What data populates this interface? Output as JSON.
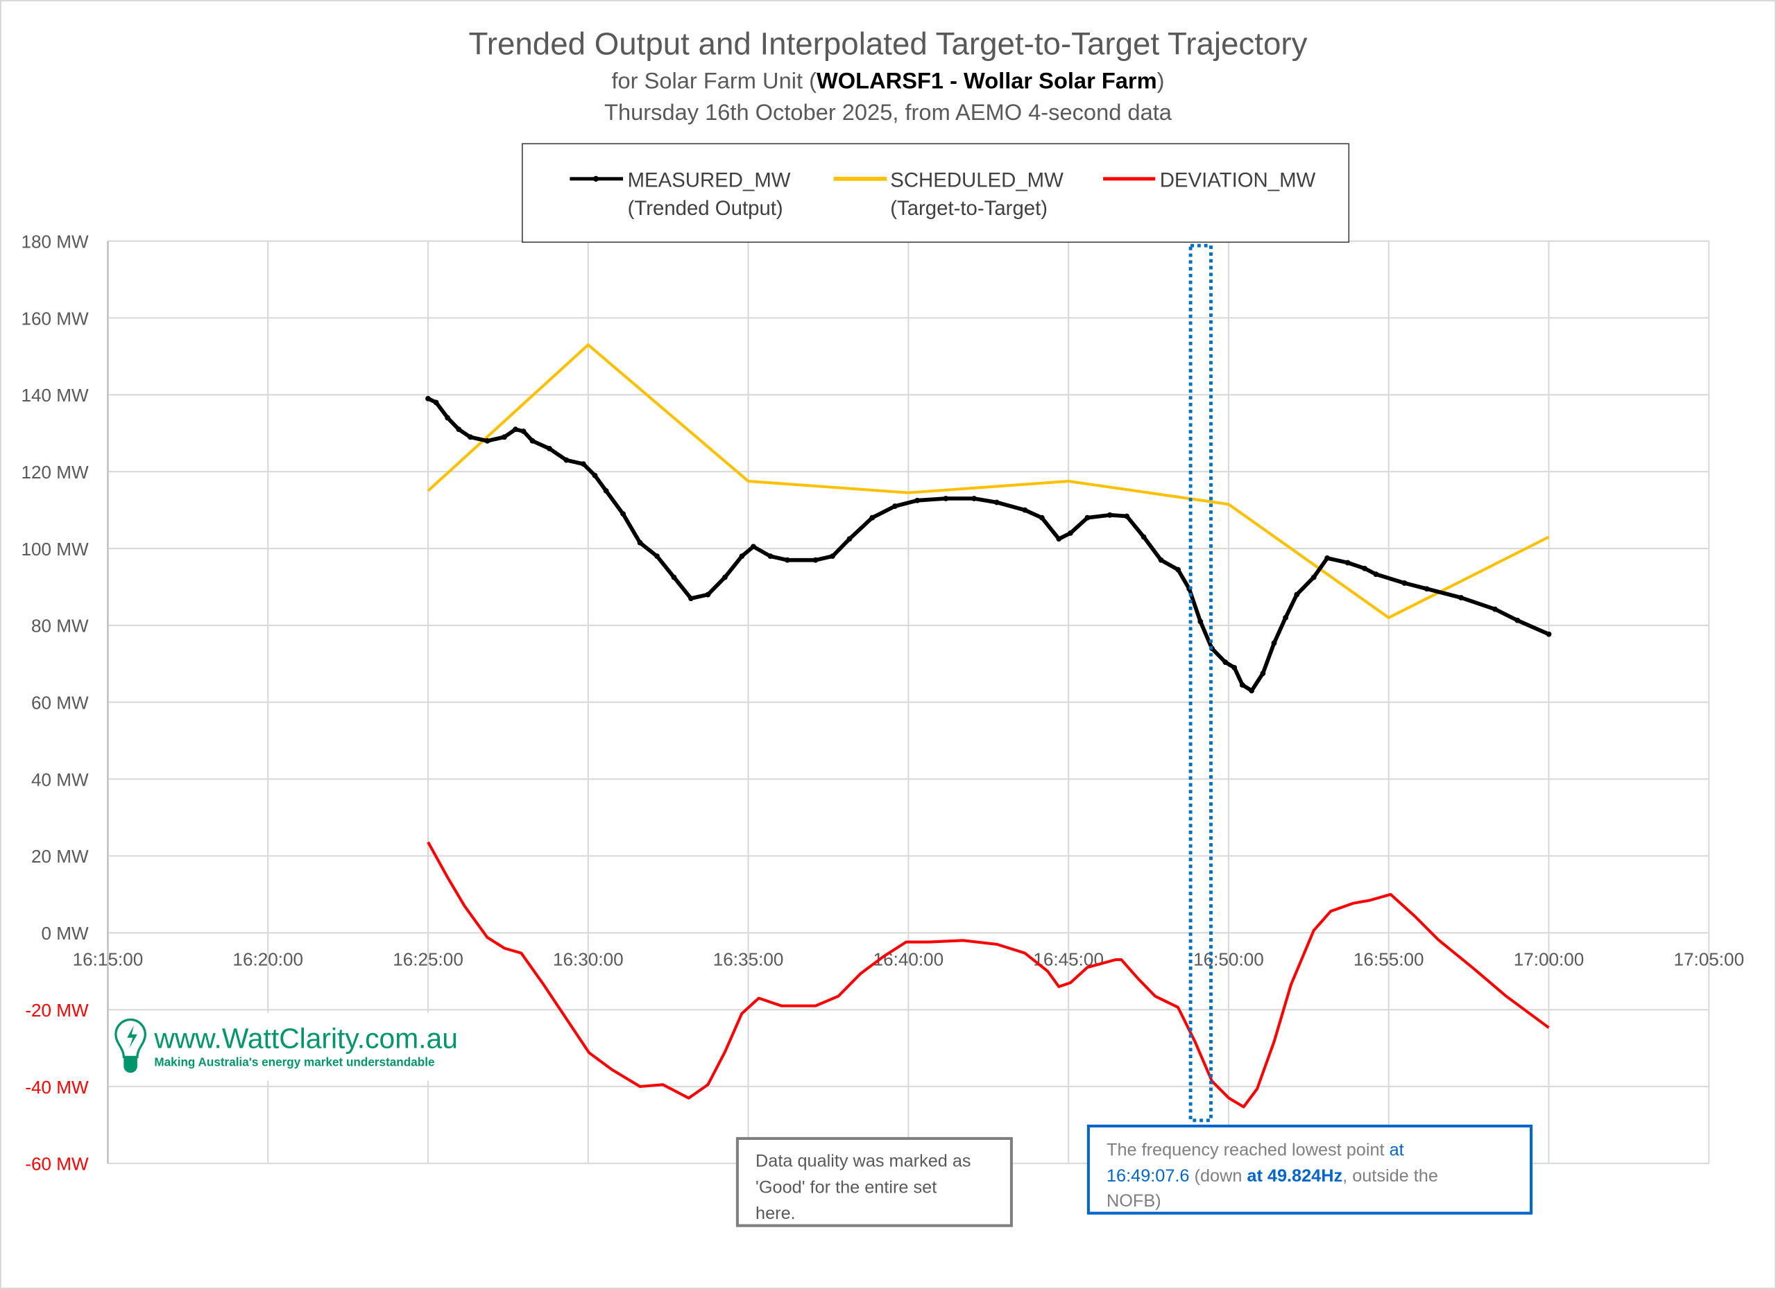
{
  "chart_data": {
    "type": "line",
    "title": "Trended Output and Interpolated Target-to-Target Trajectory",
    "subtitle_prefix": "for Solar Farm Unit (",
    "subtitle_bold": "WOLARSF1 - Wollar Solar Farm",
    "subtitle_suffix": ")",
    "subtitle2": "Thursday 16th October 2025, from AEMO 4-second data",
    "x_unit": "minutes after 16:00",
    "xlim": [
      15,
      65
    ],
    "ylim": [
      -60,
      180
    ],
    "grid": true,
    "legend_position": "top",
    "x_ticks": [
      {
        "value": 15,
        "label": "16:15:00"
      },
      {
        "value": 20,
        "label": "16:20:00"
      },
      {
        "value": 25,
        "label": "16:25:00"
      },
      {
        "value": 30,
        "label": "16:30:00"
      },
      {
        "value": 35,
        "label": "16:35:00"
      },
      {
        "value": 40,
        "label": "16:40:00"
      },
      {
        "value": 45,
        "label": "16:45:00"
      },
      {
        "value": 50,
        "label": "16:50:00"
      },
      {
        "value": 55,
        "label": "16:55:00"
      },
      {
        "value": 60,
        "label": "17:00:00"
      },
      {
        "value": 65,
        "label": "17:05:00"
      }
    ],
    "y_ticks": [
      {
        "value": 180,
        "label": "180 MW"
      },
      {
        "value": 160,
        "label": "160 MW"
      },
      {
        "value": 140,
        "label": "140 MW"
      },
      {
        "value": 120,
        "label": "120 MW"
      },
      {
        "value": 100,
        "label": "100 MW"
      },
      {
        "value": 80,
        "label": "80 MW"
      },
      {
        "value": 60,
        "label": "60 MW"
      },
      {
        "value": 40,
        "label": "40 MW"
      },
      {
        "value": 20,
        "label": "20 MW"
      },
      {
        "value": 0,
        "label": "0 MW"
      },
      {
        "value": -20,
        "label": "-20 MW"
      },
      {
        "value": -40,
        "label": "-40 MW"
      },
      {
        "value": -60,
        "label": "-60 MW"
      }
    ],
    "positive_label_color": "#595959",
    "negative_label_color": "#FF0000",
    "series": [
      {
        "name": "MEASURED_MW",
        "legend_sub": "(Trended Output)",
        "color": "#000000",
        "markers": true,
        "x": [
          25.0,
          25.25,
          25.61,
          25.96,
          26.32,
          26.85,
          27.38,
          27.73,
          27.98,
          28.26,
          28.79,
          29.32,
          29.85,
          30.21,
          30.56,
          31.09,
          31.62,
          32.15,
          32.68,
          33.21,
          33.74,
          34.27,
          34.8,
          35.16,
          35.69,
          36.22,
          37.1,
          37.63,
          38.16,
          38.87,
          39.58,
          40.28,
          41.17,
          42.05,
          42.76,
          43.64,
          44.17,
          44.7,
          45.06,
          45.59,
          46.29,
          46.82,
          47.35,
          47.89,
          48.42,
          48.77,
          49.12,
          49.48,
          49.9,
          50.18,
          50.43,
          50.72,
          51.07,
          51.42,
          51.78,
          52.13,
          52.66,
          53.08,
          53.72,
          54.25,
          54.6,
          55.49,
          56.19,
          57.26,
          58.32,
          59.02,
          60.0
        ],
        "y": [
          139,
          138,
          134,
          131,
          129,
          128,
          129,
          131,
          130.5,
          128,
          126,
          123,
          122,
          119,
          115,
          109,
          101.5,
          98,
          92.5,
          87,
          88,
          92.5,
          98,
          100.5,
          98,
          97,
          97,
          98,
          102.5,
          108,
          111,
          112.5,
          113,
          113,
          112,
          110,
          108,
          102.5,
          104,
          108,
          108.7,
          108.4,
          103,
          97,
          94.5,
          89.5,
          81,
          74,
          70.4,
          69,
          64.5,
          63,
          67.5,
          75.4,
          82,
          88,
          92.5,
          97.5,
          96.3,
          94.8,
          93.3,
          91,
          89.5,
          87.2,
          84.2,
          81.3,
          77.7
        ]
      },
      {
        "name": "SCHEDULED_MW",
        "legend_sub": "(Target-to-Target)",
        "color": "#FFC000",
        "markers": false,
        "x": [
          25,
          30,
          35,
          40,
          45,
          50,
          55,
          60
        ],
        "y": [
          115,
          153,
          117.5,
          114.5,
          117.5,
          111.5,
          82,
          103
        ]
      },
      {
        "name": "DEVIATION_MW",
        "legend_sub": "",
        "color": "#FF0000",
        "markers": false,
        "x": [
          25.0,
          25.61,
          26.14,
          26.85,
          27.38,
          27.91,
          28.61,
          29.32,
          30.03,
          30.74,
          31.62,
          32.33,
          33.14,
          33.74,
          34.27,
          34.8,
          35.33,
          36.04,
          37.1,
          37.81,
          38.51,
          39.22,
          39.93,
          40.64,
          41.7,
          42.76,
          43.64,
          44.35,
          44.7,
          45.06,
          45.59,
          46.47,
          46.65,
          47.18,
          47.71,
          48.42,
          48.95,
          49.48,
          50.01,
          50.47,
          50.89,
          51.42,
          51.95,
          52.66,
          53.19,
          53.9,
          54.43,
          55.06,
          55.84,
          56.55,
          57.61,
          58.67,
          60.0
        ],
        "y": [
          23.6,
          14.4,
          7,
          -1.2,
          -4,
          -5.3,
          -13.5,
          -22.4,
          -31.2,
          -35.6,
          -40,
          -39.5,
          -43,
          -39.5,
          -31,
          -21,
          -17,
          -19,
          -19,
          -16.5,
          -10.6,
          -6.2,
          -2.4,
          -2.4,
          -2,
          -3,
          -5.3,
          -10,
          -14,
          -13,
          -9,
          -7,
          -7,
          -12,
          -16.5,
          -19.4,
          -28.3,
          -38.6,
          -43,
          -45.3,
          -40.6,
          -28.3,
          -13.5,
          0.6,
          5.6,
          7.7,
          8.5,
          10,
          4.1,
          -1.8,
          -9,
          -16.5,
          -24.7
        ]
      }
    ],
    "highlight_time": 49.13,
    "annotations": {
      "quality": {
        "line1": "Data quality was marked as",
        "line2": "'Good' for the entire set",
        "line3": "here."
      },
      "frequency": {
        "part1": "The frequency reached lowest point ",
        "part2": "at",
        "part3": "16:49:07.6",
        "part4": " (down ",
        "part5": "at 49.824Hz",
        "part6": ", outside the",
        "part7": "NOFB)",
        "highlight_color": "#0066CC"
      }
    },
    "logo": {
      "text": "www.WattClarity.com.au",
      "tagline": "Making Australia's energy market understandable",
      "color": "#00956B"
    }
  }
}
